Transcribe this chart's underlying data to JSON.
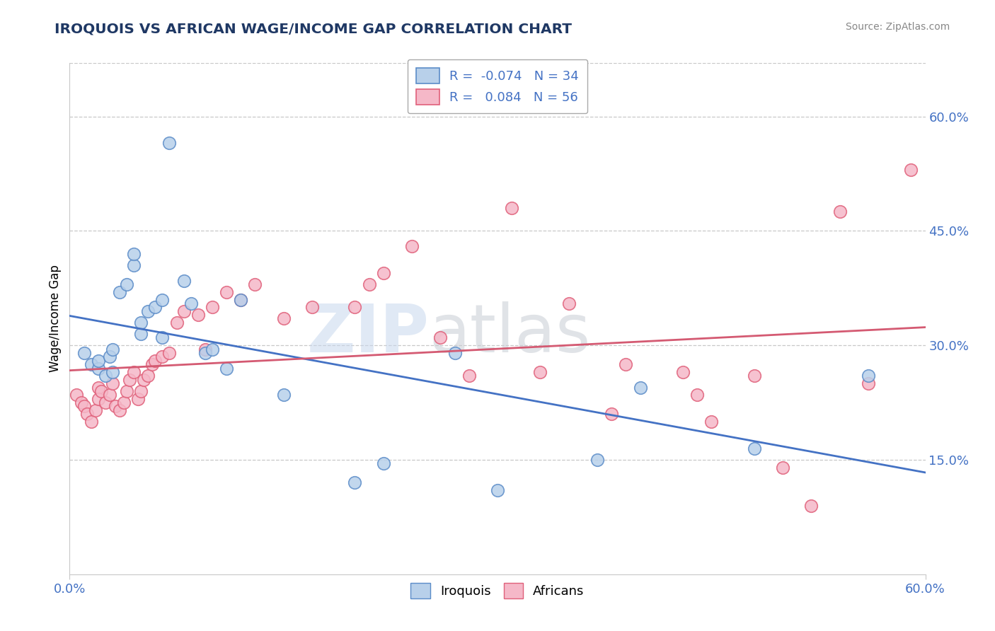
{
  "title": "IROQUOIS VS AFRICAN WAGE/INCOME GAP CORRELATION CHART",
  "source": "Source: ZipAtlas.com",
  "ylabel": "Wage/Income Gap",
  "xlim": [
    0.0,
    0.6
  ],
  "ylim": [
    0.0,
    0.67
  ],
  "yticks": [
    0.15,
    0.3,
    0.45,
    0.6
  ],
  "ytick_labels": [
    "15.0%",
    "30.0%",
    "45.0%",
    "60.0%"
  ],
  "xtick_vals": [
    0.0,
    0.6
  ],
  "xtick_labels": [
    "0.0%",
    "60.0%"
  ],
  "legend_iroquois": "R =  -0.074   N = 34",
  "legend_africans": "R =   0.084   N = 56",
  "watermark_zip": "ZIP",
  "watermark_atlas": "atlas",
  "iroquois_face_color": "#b8d0ea",
  "african_face_color": "#f5b8c8",
  "iroquois_edge_color": "#5b8cc8",
  "african_edge_color": "#e0607a",
  "iroquois_line_color": "#4472c4",
  "african_line_color": "#d45a72",
  "title_color": "#1f3864",
  "axis_label_color": "#4472c4",
  "grid_color": "#c8c8c8",
  "note": "x=Iroquois%, y=WageIncomeGap. Blue=Iroquois(N=34), Pink=Africans(N=56)",
  "iroquois_x": [
    0.01,
    0.015,
    0.02,
    0.02,
    0.025,
    0.028,
    0.03,
    0.03,
    0.035,
    0.04,
    0.045,
    0.045,
    0.05,
    0.05,
    0.055,
    0.06,
    0.065,
    0.065,
    0.07,
    0.08,
    0.085,
    0.095,
    0.1,
    0.11,
    0.12,
    0.15,
    0.2,
    0.22,
    0.27,
    0.3,
    0.37,
    0.4,
    0.48,
    0.56
  ],
  "iroquois_y": [
    0.29,
    0.275,
    0.27,
    0.28,
    0.26,
    0.285,
    0.295,
    0.265,
    0.37,
    0.38,
    0.405,
    0.42,
    0.315,
    0.33,
    0.345,
    0.35,
    0.36,
    0.31,
    0.565,
    0.385,
    0.355,
    0.29,
    0.295,
    0.27,
    0.36,
    0.235,
    0.12,
    0.145,
    0.29,
    0.11,
    0.15,
    0.245,
    0.165,
    0.26
  ],
  "african_x": [
    0.005,
    0.008,
    0.01,
    0.012,
    0.015,
    0.018,
    0.02,
    0.02,
    0.022,
    0.025,
    0.028,
    0.03,
    0.032,
    0.035,
    0.038,
    0.04,
    0.042,
    0.045,
    0.048,
    0.05,
    0.052,
    0.055,
    0.058,
    0.06,
    0.065,
    0.07,
    0.075,
    0.08,
    0.09,
    0.095,
    0.1,
    0.11,
    0.12,
    0.13,
    0.15,
    0.17,
    0.2,
    0.21,
    0.22,
    0.24,
    0.26,
    0.28,
    0.31,
    0.33,
    0.35,
    0.38,
    0.39,
    0.43,
    0.44,
    0.45,
    0.48,
    0.5,
    0.52,
    0.54,
    0.56,
    0.59
  ],
  "african_y": [
    0.235,
    0.225,
    0.22,
    0.21,
    0.2,
    0.215,
    0.245,
    0.23,
    0.24,
    0.225,
    0.235,
    0.25,
    0.22,
    0.215,
    0.225,
    0.24,
    0.255,
    0.265,
    0.23,
    0.24,
    0.255,
    0.26,
    0.275,
    0.28,
    0.285,
    0.29,
    0.33,
    0.345,
    0.34,
    0.295,
    0.35,
    0.37,
    0.36,
    0.38,
    0.335,
    0.35,
    0.35,
    0.38,
    0.395,
    0.43,
    0.31,
    0.26,
    0.48,
    0.265,
    0.355,
    0.21,
    0.275,
    0.265,
    0.235,
    0.2,
    0.26,
    0.14,
    0.09,
    0.475,
    0.25,
    0.53
  ]
}
